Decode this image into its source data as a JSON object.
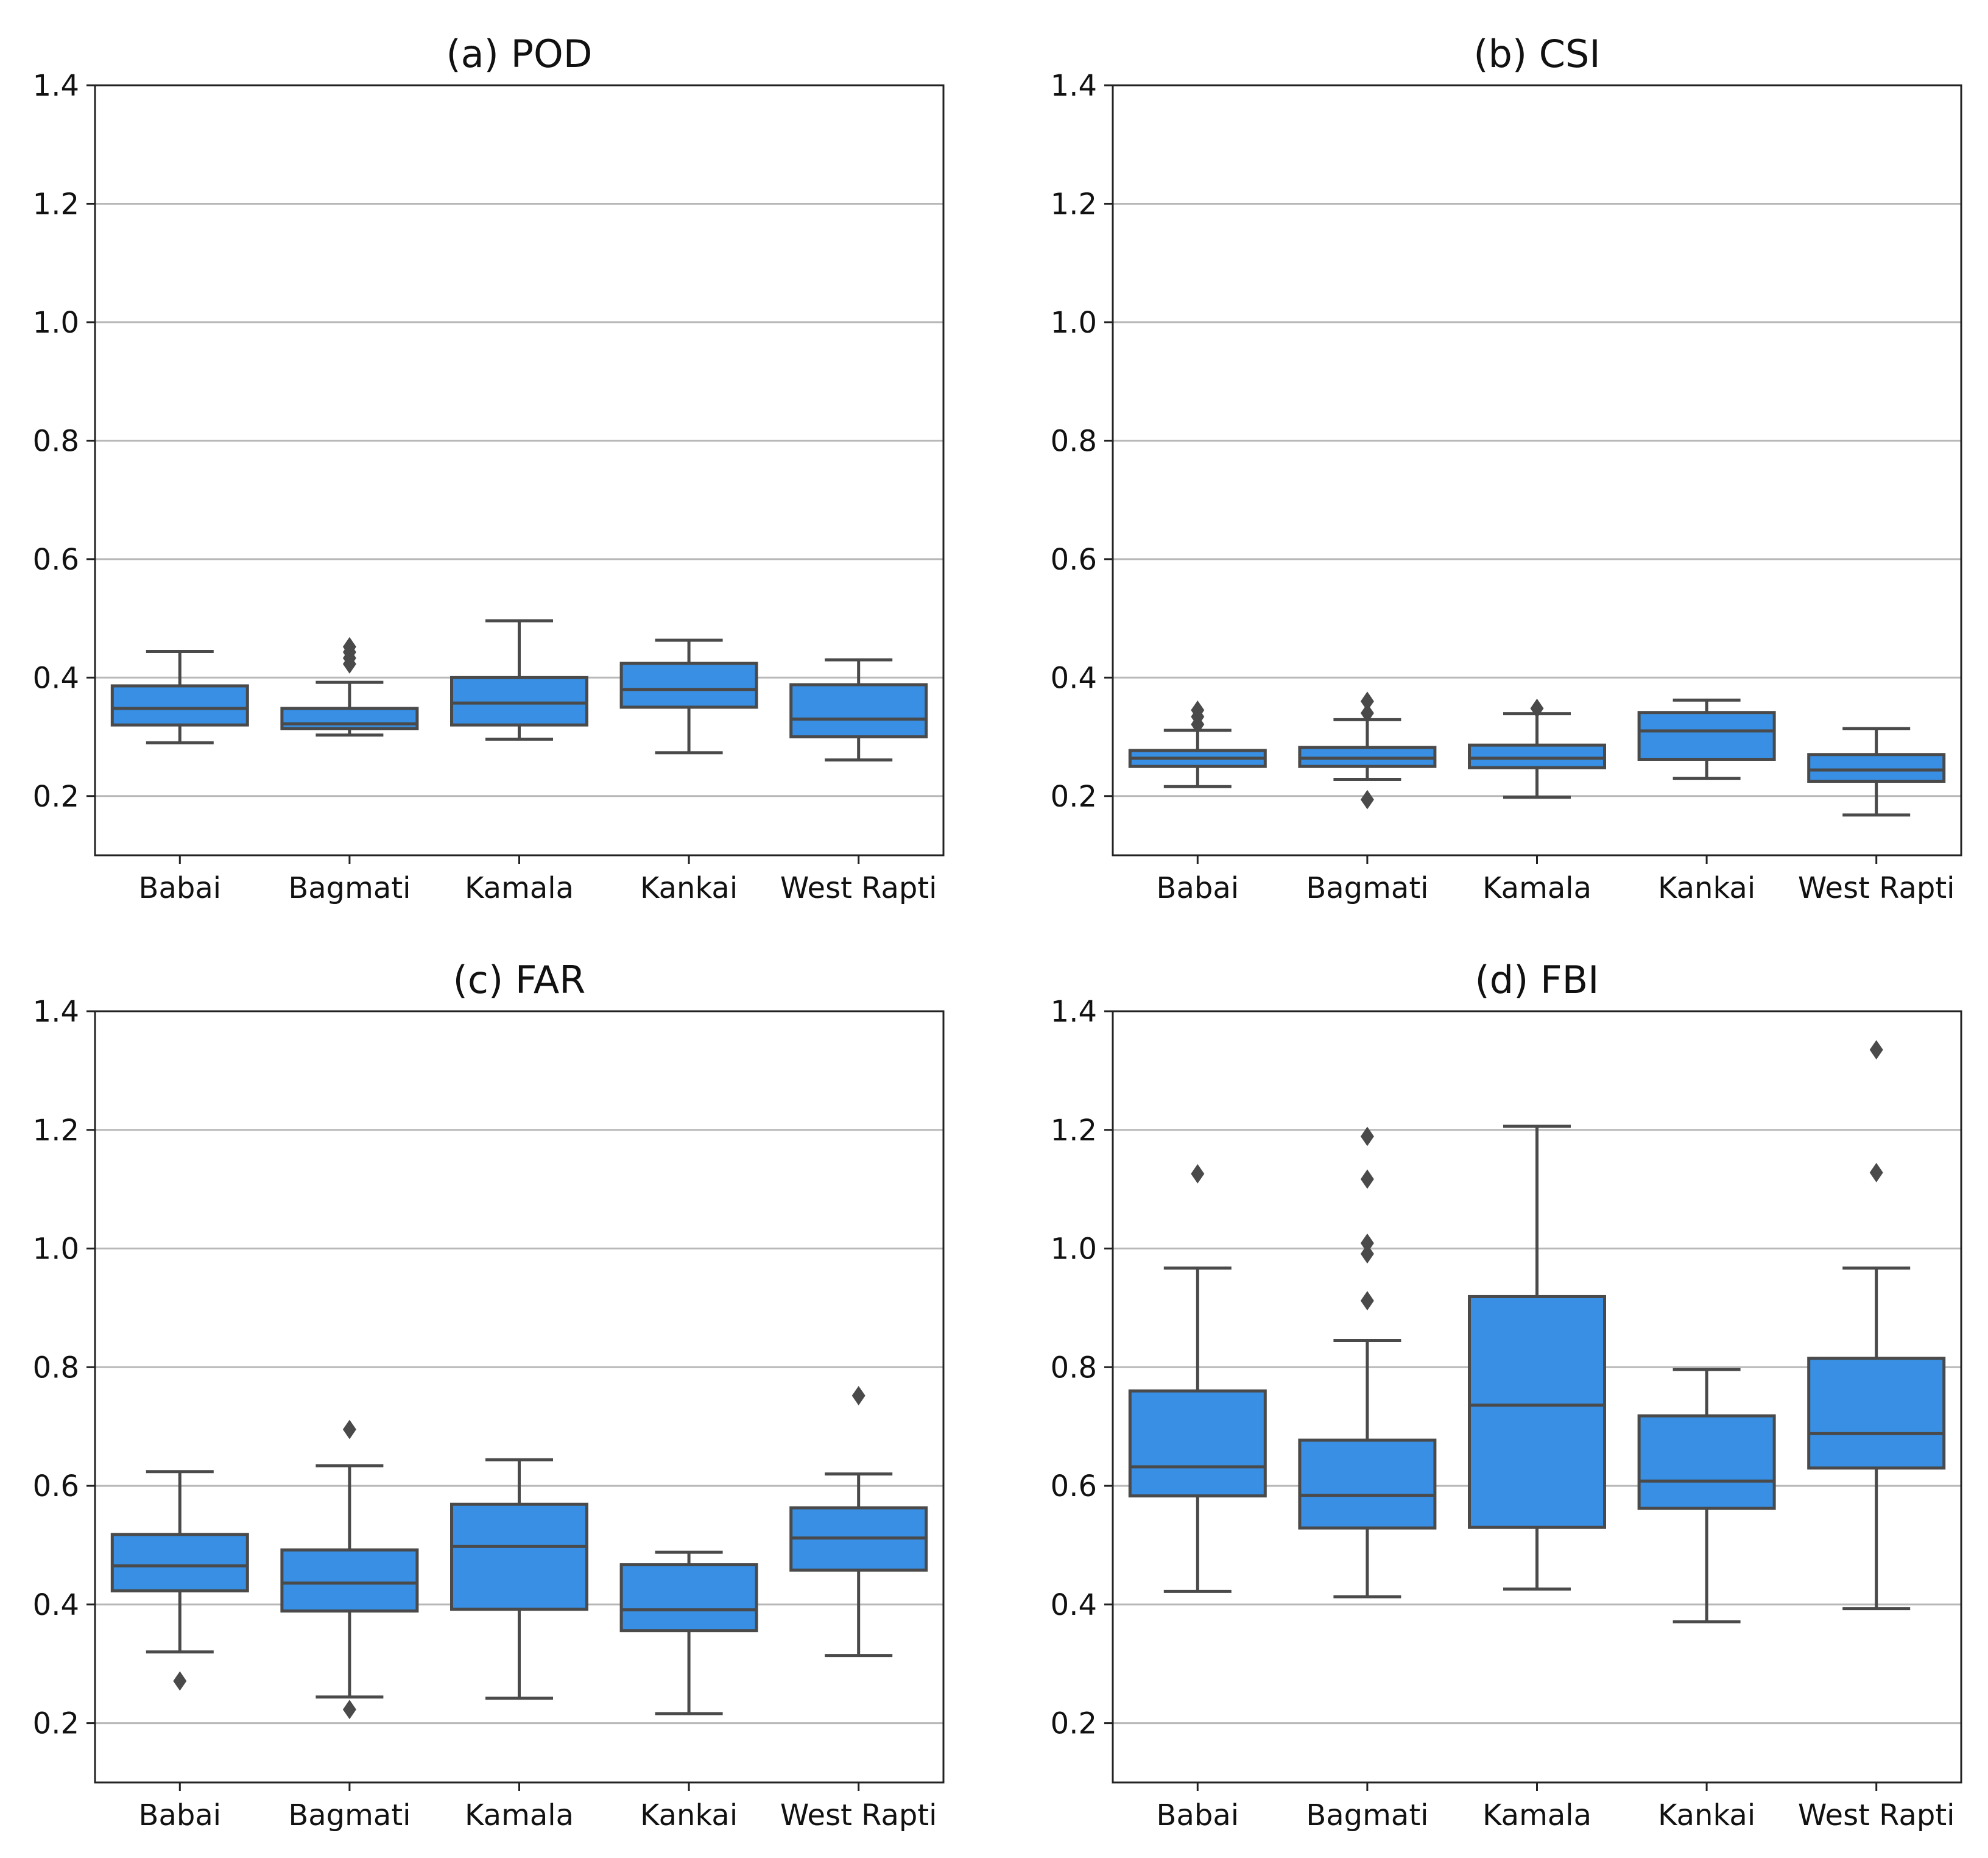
{
  "chart_data": [
    {
      "type": "box",
      "title": "(a) POD",
      "categories": [
        "Babai",
        "Bagmati",
        "Kamala",
        "Kankai",
        "West Rapti"
      ],
      "ylim": [
        0.1,
        1.4
      ],
      "yticks": [
        0.2,
        0.4,
        0.6,
        0.8,
        1.0,
        1.2,
        1.4
      ],
      "grid": true,
      "boxes": [
        {
          "category": "Babai",
          "whislo": 0.29,
          "q1": 0.32,
          "med": 0.348,
          "q3": 0.386,
          "whishi": 0.444,
          "fliers": []
        },
        {
          "category": "Bagmati",
          "whislo": 0.303,
          "q1": 0.314,
          "med": 0.322,
          "q3": 0.348,
          "whishi": 0.392,
          "fliers": [
            0.423,
            0.433,
            0.443,
            0.452
          ]
        },
        {
          "category": "Kamala",
          "whislo": 0.296,
          "q1": 0.32,
          "med": 0.357,
          "q3": 0.4,
          "whishi": 0.496,
          "fliers": []
        },
        {
          "category": "Kankai",
          "whislo": 0.273,
          "q1": 0.35,
          "med": 0.38,
          "q3": 0.424,
          "whishi": 0.463,
          "fliers": []
        },
        {
          "category": "West Rapti",
          "whislo": 0.261,
          "q1": 0.3,
          "med": 0.33,
          "q3": 0.388,
          "whishi": 0.43,
          "fliers": []
        }
      ]
    },
    {
      "type": "box",
      "title": "(b) CSI",
      "categories": [
        "Babai",
        "Bagmati",
        "Kamala",
        "Kankai",
        "West Rapti"
      ],
      "ylim": [
        0.1,
        1.4
      ],
      "yticks": [
        0.2,
        0.4,
        0.6,
        0.8,
        1.0,
        1.2,
        1.4
      ],
      "grid": true,
      "boxes": [
        {
          "category": "Babai",
          "whislo": 0.216,
          "q1": 0.25,
          "med": 0.264,
          "q3": 0.277,
          "whishi": 0.311,
          "fliers": [
            0.321,
            0.334,
            0.345
          ]
        },
        {
          "category": "Bagmati",
          "whislo": 0.228,
          "q1": 0.25,
          "med": 0.264,
          "q3": 0.282,
          "whishi": 0.329,
          "fliers": [
            0.194,
            0.34,
            0.36
          ]
        },
        {
          "category": "Kamala",
          "whislo": 0.198,
          "q1": 0.248,
          "med": 0.264,
          "q3": 0.286,
          "whishi": 0.339,
          "fliers": [
            0.348
          ]
        },
        {
          "category": "Kankai",
          "whislo": 0.23,
          "q1": 0.262,
          "med": 0.31,
          "q3": 0.341,
          "whishi": 0.362,
          "fliers": []
        },
        {
          "category": "West Rapti",
          "whislo": 0.168,
          "q1": 0.225,
          "med": 0.244,
          "q3": 0.27,
          "whishi": 0.314,
          "fliers": []
        }
      ]
    },
    {
      "type": "box",
      "title": "(c) FAR",
      "categories": [
        "Babai",
        "Bagmati",
        "Kamala",
        "Kankai",
        "West Rapti"
      ],
      "ylim": [
        0.1,
        1.4
      ],
      "yticks": [
        0.2,
        0.4,
        0.6,
        0.8,
        1.0,
        1.2,
        1.4
      ],
      "grid": true,
      "boxes": [
        {
          "category": "Babai",
          "whislo": 0.32,
          "q1": 0.423,
          "med": 0.465,
          "q3": 0.518,
          "whishi": 0.624,
          "fliers": [
            0.271
          ]
        },
        {
          "category": "Bagmati",
          "whislo": 0.244,
          "q1": 0.389,
          "med": 0.436,
          "q3": 0.492,
          "whishi": 0.634,
          "fliers": [
            0.223,
            0.695
          ]
        },
        {
          "category": "Kamala",
          "whislo": 0.242,
          "q1": 0.392,
          "med": 0.498,
          "q3": 0.569,
          "whishi": 0.644,
          "fliers": []
        },
        {
          "category": "Kankai",
          "whislo": 0.216,
          "q1": 0.356,
          "med": 0.391,
          "q3": 0.467,
          "whishi": 0.488,
          "fliers": []
        },
        {
          "category": "West Rapti",
          "whislo": 0.314,
          "q1": 0.458,
          "med": 0.512,
          "q3": 0.563,
          "whishi": 0.62,
          "fliers": [
            0.752
          ]
        }
      ]
    },
    {
      "type": "box",
      "title": "(d) FBI",
      "categories": [
        "Babai",
        "Bagmati",
        "Kamala",
        "Kankai",
        "West Rapti"
      ],
      "ylim": [
        0.1,
        1.4
      ],
      "yticks": [
        0.2,
        0.4,
        0.6,
        0.8,
        1.0,
        1.2,
        1.4
      ],
      "grid": true,
      "boxes": [
        {
          "category": "Babai",
          "whislo": 0.422,
          "q1": 0.583,
          "med": 0.632,
          "q3": 0.76,
          "whishi": 0.967,
          "fliers": [
            1.126
          ]
        },
        {
          "category": "Bagmati",
          "whislo": 0.413,
          "q1": 0.529,
          "med": 0.584,
          "q3": 0.677,
          "whishi": 0.845,
          "fliers": [
            0.912,
            0.991,
            1.009,
            1.117,
            1.189
          ]
        },
        {
          "category": "Kamala",
          "whislo": 0.426,
          "q1": 0.53,
          "med": 0.736,
          "q3": 0.919,
          "whishi": 1.206,
          "fliers": []
        },
        {
          "category": "Kankai",
          "whislo": 0.371,
          "q1": 0.562,
          "med": 0.608,
          "q3": 0.718,
          "whishi": 0.796,
          "fliers": []
        },
        {
          "category": "West Rapti",
          "whislo": 0.393,
          "q1": 0.63,
          "med": 0.688,
          "q3": 0.815,
          "whishi": 0.967,
          "fliers": [
            1.128,
            1.335
          ]
        }
      ]
    }
  ]
}
